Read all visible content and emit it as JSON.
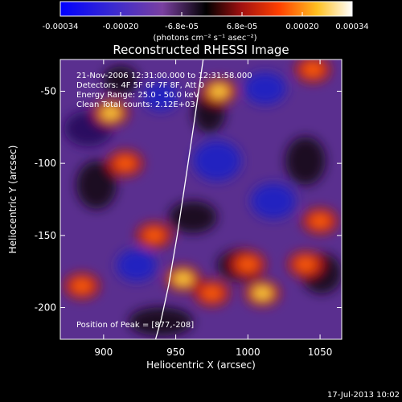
{
  "colorbar": {
    "ticks": [
      "-0.00034",
      "-0.00020",
      "-6.8e-05",
      "6.8e-05",
      "0.00020",
      "0.00034"
    ],
    "unit_label": "(photons cm⁻² s⁻¹ asec⁻²)",
    "range": [
      -0.00034,
      0.00034
    ],
    "colormap": [
      "#0000ff",
      "#5a3ab0",
      "#000000",
      "#b01010",
      "#ff7a00",
      "#ffff60",
      "#ffffff"
    ]
  },
  "chart_data": {
    "type": "heatmap",
    "title": "Reconstructed RHESSI Image",
    "xlabel": "Heliocentric X (arcsec)",
    "ylabel": "Heliocentric Y (arcsec)",
    "xlim": [
      870,
      1065
    ],
    "ylim": [
      -222,
      -28
    ],
    "xticks": [
      900,
      950,
      1000,
      1050
    ],
    "yticks": [
      -50,
      -100,
      -150,
      -200
    ],
    "annotations": [
      "21-Nov-2006 12:31:00.000 to 12:31:58.000",
      "Detectors: 4F 5F 6F 7F 8F, Att 0",
      "Energy Range: 25.0 - 50.0 keV",
      "Clean     Total counts: 2.12E+03"
    ],
    "peak_label": "Position of Peak = [877,-208]",
    "peak": [
      877,
      -208
    ],
    "limb_curve_x": [
      969,
      963,
      957,
      951,
      945,
      940,
      936
    ],
    "limb_curve_y": [
      -28,
      -70,
      -110,
      -150,
      -185,
      -208,
      -222
    ],
    "bright_sources": [
      {
        "x": 905,
        "y": -65
      },
      {
        "x": 915,
        "y": -100
      },
      {
        "x": 935,
        "y": -150
      },
      {
        "x": 955,
        "y": -180
      },
      {
        "x": 975,
        "y": -190
      },
      {
        "x": 1000,
        "y": -170
      },
      {
        "x": 1010,
        "y": -190
      },
      {
        "x": 1040,
        "y": -170
      },
      {
        "x": 1050,
        "y": -140
      },
      {
        "x": 980,
        "y": -50
      },
      {
        "x": 1045,
        "y": -35
      },
      {
        "x": 885,
        "y": -185
      }
    ]
  },
  "footer_date": "17-Jul-2013 10:02"
}
